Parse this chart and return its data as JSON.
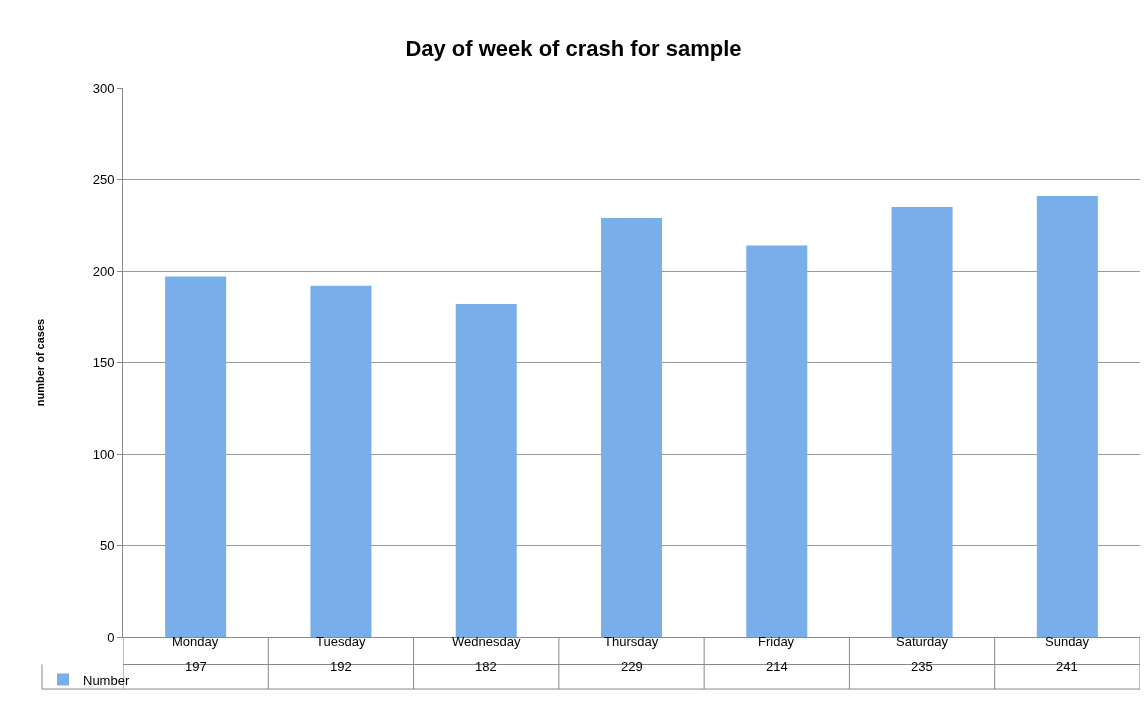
{
  "chart_data": {
    "type": "bar",
    "title": "Day of week of crash for sample",
    "ylabel": "number of cases",
    "categories": [
      "Monday",
      "Tuesday",
      "Wednesday",
      "Thursday",
      "Friday",
      "Saturday",
      "Sunday"
    ],
    "series": [
      {
        "name": "Number",
        "color": "#78aeea",
        "values": [
          197,
          192,
          182,
          229,
          214,
          235,
          241
        ]
      }
    ],
    "ylim": [
      0,
      300
    ],
    "yticks": [
      0,
      50,
      100,
      150,
      200,
      250,
      300
    ],
    "grid": "y",
    "data_labels": true,
    "legend": "bottom left"
  }
}
